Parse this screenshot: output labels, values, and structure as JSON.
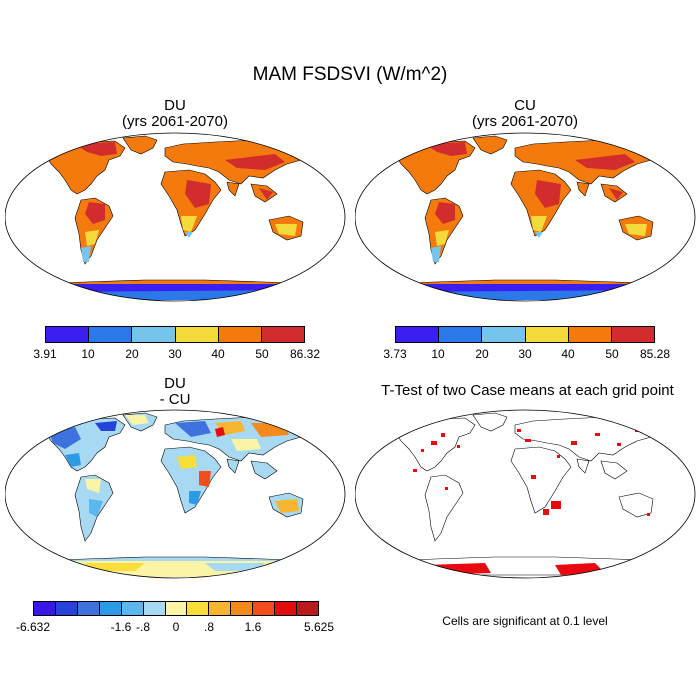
{
  "figure": {
    "title": "MAM FSDSVI (W/m^2)",
    "panels": [
      {
        "id": "du",
        "title_line1": "DU",
        "title_line2": "(yrs 2061-2070)",
        "colorbar": {
          "colors": [
            "#3b1ff0",
            "#2b78e8",
            "#75c4eb",
            "#f4db3b",
            "#f57a0e",
            "#d12d2d"
          ],
          "labels": [
            "3.91",
            "10",
            "20",
            "30",
            "40",
            "50",
            "86.32"
          ]
        }
      },
      {
        "id": "cu",
        "title_line1": "CU",
        "title_line2": "(yrs 2061-2070)",
        "colorbar": {
          "colors": [
            "#3b1ff0",
            "#2b78e8",
            "#75c4eb",
            "#f4db3b",
            "#f57a0e",
            "#d12d2d"
          ],
          "labels": [
            "3.73",
            "10",
            "20",
            "30",
            "40",
            "50",
            "85.28"
          ]
        }
      },
      {
        "id": "diff",
        "title_line1": "DU",
        "title_line2": "- CU",
        "colorbar": {
          "colors": [
            "#3a17e6",
            "#2443d8",
            "#3d72df",
            "#2b9be6",
            "#5cb6ef",
            "#a7d9f2",
            "#fbf3a6",
            "#f9dd3b",
            "#f7b531",
            "#f58a1c",
            "#f24e1d",
            "#e20e0e",
            "#b81c1c"
          ],
          "labels": [
            "-6.632",
            "-1.6",
            "-.8",
            "0",
            ".8",
            "1.6",
            "5.625"
          ]
        }
      },
      {
        "id": "ttest",
        "title_line1": "T-Test of two Case means at each grid point",
        "note": "Cells are significant at 0.1 level",
        "colors": {
          "significant": "#e8080e"
        }
      }
    ]
  }
}
